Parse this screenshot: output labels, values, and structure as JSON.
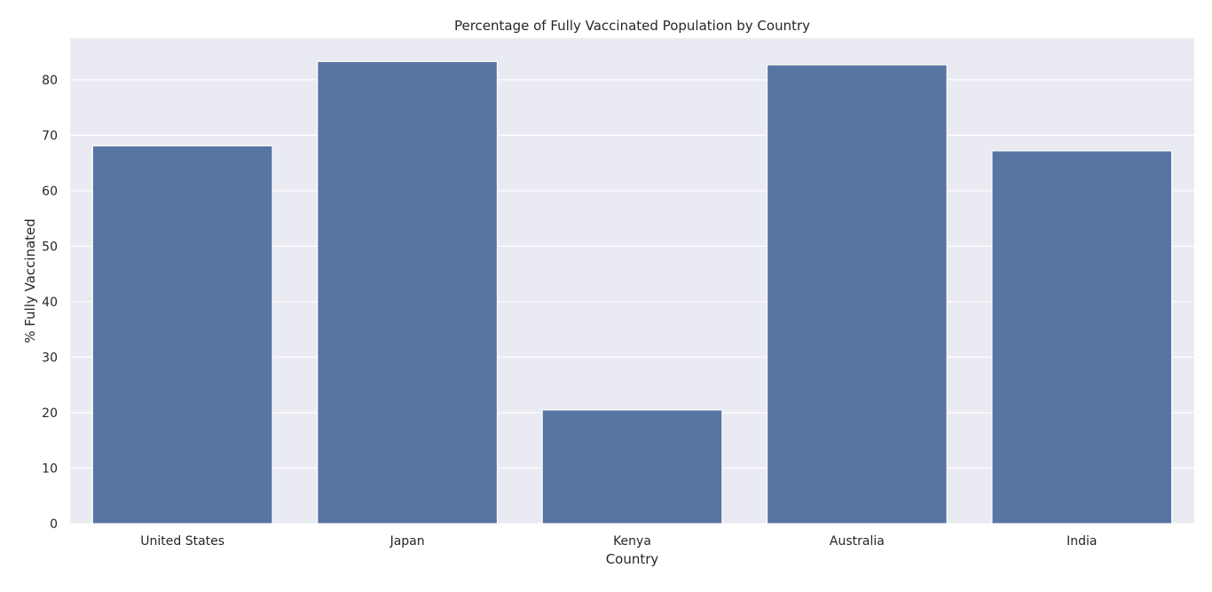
{
  "chart_data": {
    "type": "bar",
    "title": "Percentage of Fully Vaccinated Population by Country",
    "xlabel": "Country",
    "ylabel": "% Fully Vaccinated",
    "categories": [
      "United States",
      "Japan",
      "Kenya",
      "Australia",
      "India"
    ],
    "values": [
      68.1,
      83.3,
      20.5,
      82.7,
      67.2
    ],
    "ylim": [
      0,
      87.5
    ],
    "yticks": [
      0,
      10,
      20,
      30,
      40,
      50,
      60,
      70,
      80
    ],
    "grid": true,
    "colors": {
      "bar": "#5874a3",
      "plot_background": "#eaeaf2",
      "grid": "#ffffff",
      "text": "#262626"
    }
  }
}
